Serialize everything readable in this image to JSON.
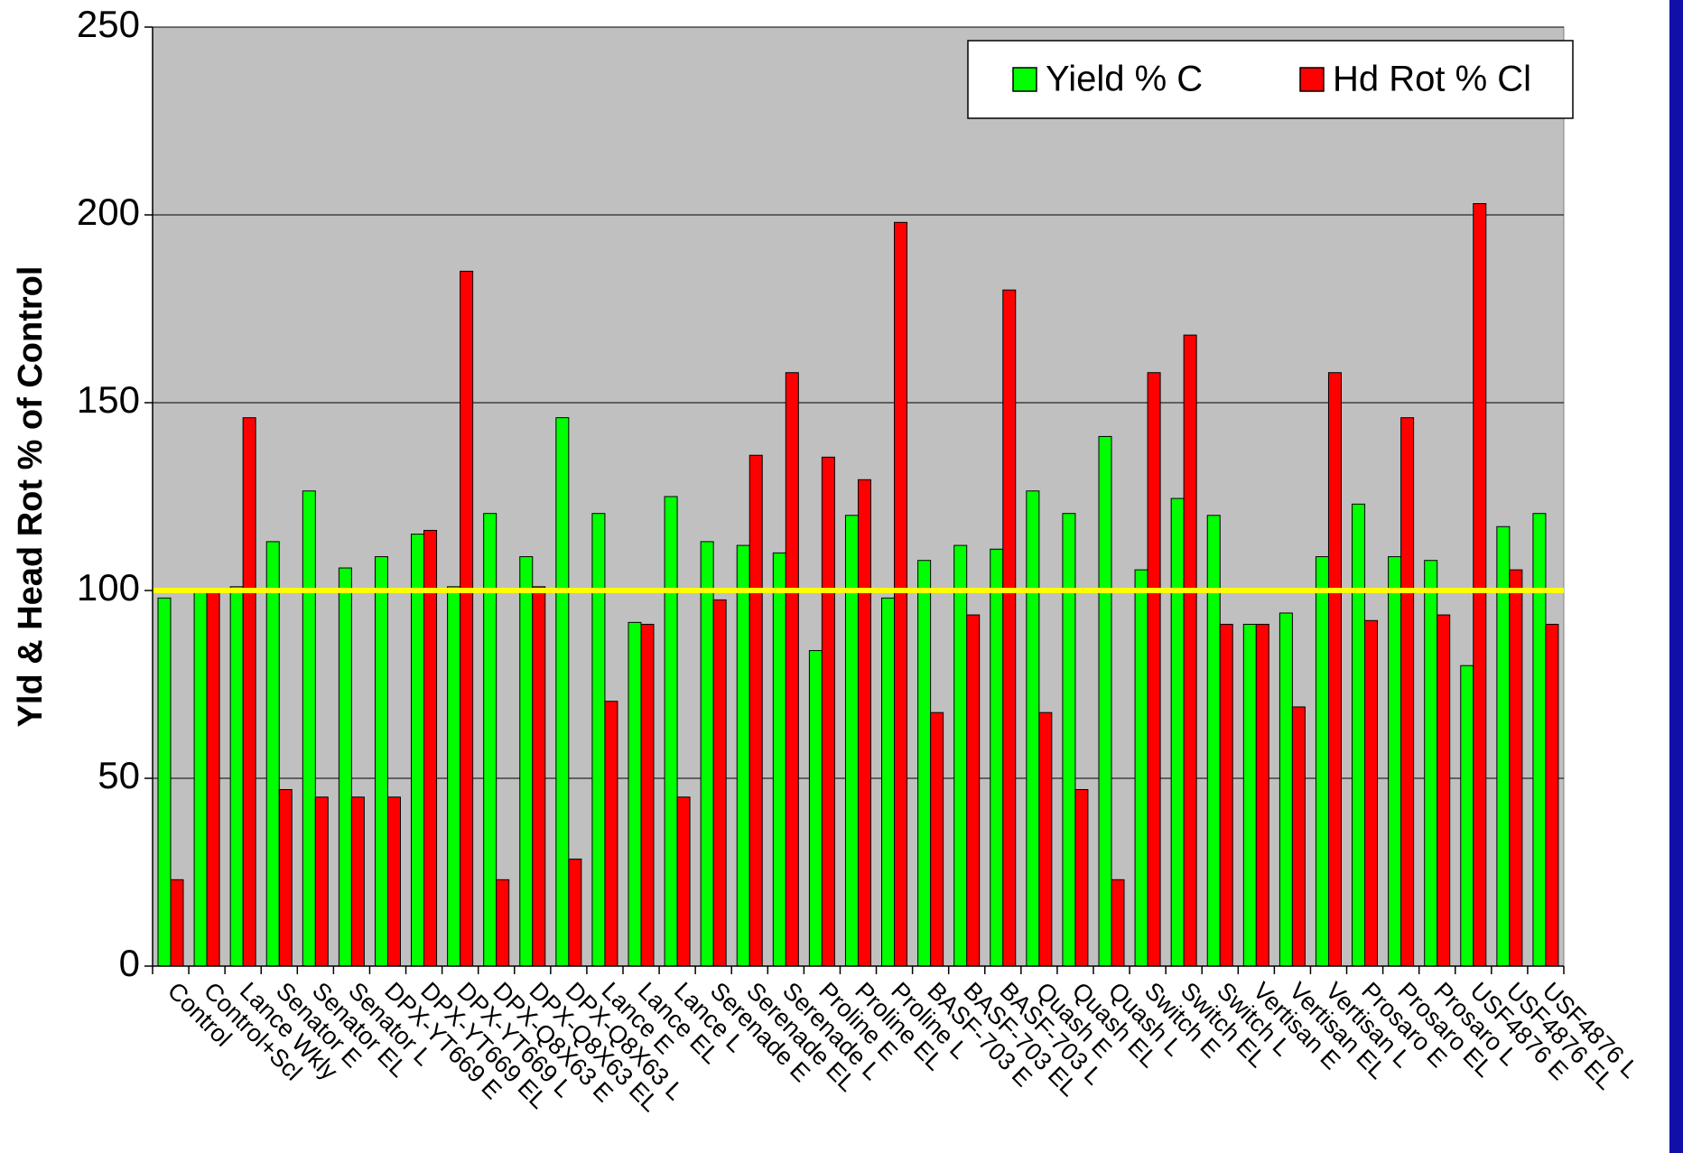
{
  "chart_data": {
    "type": "bar",
    "y_label": "Yld & Head Rot % of Control",
    "categories": [
      "Control",
      "Control+Scl",
      "Lance Wkly",
      "Senator E",
      "Senator EL",
      "Senator L",
      "DPX-YT669 E",
      "DPX-YT669 EL",
      "DPX-YT669 L",
      "DPX-Q8X63 E",
      "DPX-Q8X63 EL",
      "DPX-Q8X63 L",
      "Lance E",
      "Lance EL",
      "Lance L",
      "Serenade E",
      "Serenade EL",
      "Serenade L",
      "Proline E",
      "Proline EL",
      "Proline L",
      "BASF-703 E",
      "BASF-703 EL",
      "BASF-703 L",
      "Quash E",
      "Quash EL",
      "Quash L",
      "Switch E",
      "Switch EL",
      "Switch L",
      "Vertisan E",
      "Vertisan EL",
      "Vertisan L",
      "Prosaro E",
      "Prosaro EL",
      "Prosaro L",
      "USF4876 E",
      "USF4876 EL",
      "USF4876 L"
    ],
    "series": [
      {
        "name": "Yield % C",
        "color": "#00ff00",
        "values": [
          98,
          100,
          101,
          113,
          126.5,
          106,
          109,
          115,
          101,
          120.5,
          109,
          146,
          120.5,
          91.5,
          125,
          113,
          112,
          110,
          84,
          120,
          98,
          108,
          112,
          111,
          126.5,
          120.5,
          141,
          105.5,
          124.5,
          120,
          91,
          94,
          109,
          123,
          109,
          108,
          80,
          117,
          120.5
        ]
      },
      {
        "name": "Hd Rot % Cl",
        "color": "#ff0000",
        "values": [
          23,
          100,
          146,
          47,
          45,
          45,
          45,
          116,
          185,
          23,
          101,
          28.5,
          70.5,
          91,
          45,
          97.5,
          136,
          158,
          135.5,
          129.5,
          198,
          67.5,
          93.5,
          180,
          67.5,
          47,
          23,
          158,
          168,
          91,
          91,
          69,
          158,
          92,
          146,
          93.5,
          203,
          105.5,
          91
        ]
      }
    ],
    "reference_line": {
      "value": 100,
      "color": "#ffff00"
    },
    "ylim": [
      0,
      250
    ],
    "yticks": [
      0,
      50,
      100,
      150,
      200,
      250
    ],
    "grid": true,
    "legend": "top-right",
    "plot_background": "#c0c0c0"
  }
}
